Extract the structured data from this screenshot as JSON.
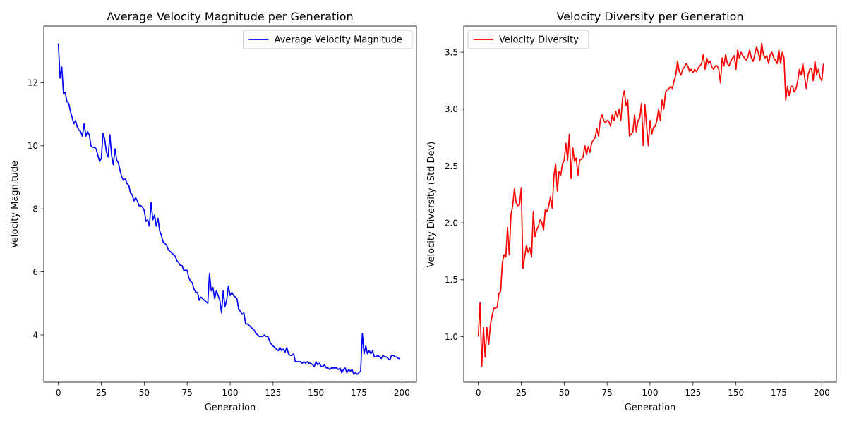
{
  "chart_data": [
    {
      "type": "line",
      "title": "Average Velocity Magnitude per Generation",
      "xlabel": "Generation",
      "ylabel": "Velocity Magnitude",
      "xlim": [
        -8.5,
        208.5
      ],
      "ylim": [
        2.5,
        13.8
      ],
      "xticks": [
        0,
        25,
        50,
        75,
        100,
        125,
        150,
        175,
        200
      ],
      "yticks": [
        4,
        6,
        8,
        10,
        12
      ],
      "legend": "upper right",
      "series": [
        {
          "name": "Average Velocity Magnitude",
          "color": "#0000ff",
          "x_start": 0,
          "values": [
            13.25,
            12.15,
            12.5,
            11.65,
            11.7,
            11.4,
            11.35,
            11.1,
            10.9,
            10.7,
            10.8,
            10.6,
            10.5,
            10.45,
            10.3,
            10.7,
            10.3,
            10.45,
            10.35,
            10.0,
            9.95,
            9.95,
            9.9,
            9.7,
            9.5,
            9.6,
            10.4,
            10.2,
            9.8,
            9.65,
            10.35,
            9.7,
            9.4,
            9.9,
            9.55,
            9.45,
            9.2,
            9.0,
            8.9,
            8.95,
            8.8,
            8.75,
            8.5,
            8.45,
            8.25,
            8.35,
            8.25,
            8.1,
            8.1,
            8.05,
            7.95,
            7.6,
            7.65,
            7.45,
            8.2,
            7.65,
            7.8,
            7.45,
            7.7,
            7.3,
            7.15,
            6.95,
            6.9,
            6.85,
            6.7,
            6.65,
            6.6,
            6.55,
            6.5,
            6.35,
            6.3,
            6.2,
            6.2,
            6.05,
            6.05,
            6.05,
            5.8,
            5.7,
            5.65,
            5.45,
            5.35,
            5.35,
            5.1,
            5.2,
            5.15,
            5.1,
            5.05,
            5.0,
            5.95,
            5.4,
            5.5,
            5.15,
            5.4,
            5.25,
            5.1,
            4.7,
            5.4,
            4.9,
            5.1,
            5.55,
            5.25,
            5.35,
            5.25,
            5.2,
            5.15,
            4.8,
            4.75,
            4.65,
            4.7,
            4.35,
            4.35,
            4.3,
            4.25,
            4.2,
            4.15,
            4.05,
            4.0,
            3.95,
            3.95,
            3.95,
            4.0,
            3.95,
            3.95,
            3.8,
            3.7,
            3.65,
            3.6,
            3.55,
            3.5,
            3.6,
            3.5,
            3.55,
            3.45,
            3.6,
            3.4,
            3.35,
            3.35,
            3.4,
            3.15,
            3.15,
            3.15,
            3.15,
            3.1,
            3.15,
            3.1,
            3.15,
            3.1,
            3.1,
            3.05,
            3.0,
            3.15,
            3.05,
            3.1,
            3.0,
            3.0,
            3.05,
            2.95,
            2.95,
            2.9,
            2.95,
            2.95,
            2.95,
            2.95,
            2.9,
            2.95,
            2.8,
            2.9,
            2.95,
            2.8,
            2.9,
            2.85,
            2.9,
            2.75,
            2.8,
            2.75,
            2.8,
            2.85,
            4.05,
            3.4,
            3.65,
            3.4,
            3.5,
            3.4,
            3.5,
            3.3,
            3.3,
            3.35,
            3.3,
            3.25,
            3.35,
            3.3,
            3.3,
            3.25,
            3.2,
            3.35,
            3.35,
            3.3,
            3.3,
            3.25,
            3.25
          ]
        }
      ]
    },
    {
      "type": "line",
      "title": "Velocity Diversity per Generation",
      "xlabel": "Generation",
      "ylabel": "Velocity Diversity (Std Dev)",
      "xlim": [
        -8.5,
        208.5
      ],
      "ylim": [
        0.6,
        3.73
      ],
      "xticks": [
        0,
        25,
        50,
        75,
        100,
        125,
        150,
        175,
        200
      ],
      "yticks": [
        1.0,
        1.5,
        2.0,
        2.5,
        3.0,
        3.5
      ],
      "ytick_labels": [
        "1.0",
        "1.5",
        "2.0",
        "2.5",
        "3.0",
        "3.5"
      ],
      "legend": "upper left",
      "series": [
        {
          "name": "Velocity Diversity",
          "color": "#ff0000",
          "x_start": 0,
          "values": [
            1.0,
            1.3,
            0.74,
            1.08,
            0.82,
            1.08,
            0.93,
            1.1,
            1.18,
            1.25,
            1.25,
            1.26,
            1.38,
            1.4,
            1.65,
            1.72,
            1.7,
            1.96,
            1.72,
            2.07,
            2.15,
            2.3,
            2.18,
            2.15,
            2.16,
            2.31,
            1.6,
            1.7,
            1.8,
            1.74,
            1.78,
            1.7,
            2.1,
            1.88,
            1.94,
            1.97,
            2.03,
            2.0,
            1.94,
            2.12,
            2.1,
            2.15,
            2.23,
            2.13,
            2.41,
            2.52,
            2.28,
            2.45,
            2.42,
            2.52,
            2.55,
            2.7,
            2.55,
            2.78,
            2.39,
            2.66,
            2.54,
            2.57,
            2.42,
            2.55,
            2.56,
            2.58,
            2.68,
            2.6,
            2.67,
            2.62,
            2.7,
            2.73,
            2.75,
            2.83,
            2.76,
            2.9,
            2.95,
            2.9,
            2.88,
            2.9,
            2.89,
            2.85,
            2.95,
            2.9,
            2.98,
            2.93,
            3.0,
            2.9,
            3.1,
            3.16,
            3.03,
            3.08,
            2.76,
            2.78,
            2.8,
            2.95,
            2.8,
            2.9,
            2.92,
            3.05,
            2.68,
            3.04,
            2.85,
            2.68,
            2.9,
            2.78,
            2.84,
            2.85,
            2.9,
            3.0,
            2.9,
            3.08,
            3.0,
            3.15,
            3.17,
            3.18,
            3.2,
            3.18,
            3.25,
            3.3,
            3.42,
            3.33,
            3.3,
            3.35,
            3.37,
            3.4,
            3.38,
            3.33,
            3.35,
            3.32,
            3.35,
            3.33,
            3.36,
            3.38,
            3.4,
            3.48,
            3.35,
            3.45,
            3.4,
            3.42,
            3.37,
            3.35,
            3.38,
            3.38,
            3.35,
            3.23,
            3.45,
            3.38,
            3.48,
            3.4,
            3.38,
            3.42,
            3.45,
            3.47,
            3.35,
            3.52,
            3.45,
            3.5,
            3.47,
            3.45,
            3.43,
            3.46,
            3.52,
            3.45,
            3.42,
            3.48,
            3.55,
            3.5,
            3.43,
            3.58,
            3.48,
            3.45,
            3.47,
            3.4,
            3.48,
            3.5,
            3.45,
            3.43,
            3.4,
            3.52,
            3.4,
            3.5,
            3.45,
            3.08,
            3.2,
            3.12,
            3.2,
            3.2,
            3.15,
            3.18,
            3.25,
            3.35,
            3.3,
            3.4,
            3.28,
            3.18,
            3.3,
            3.35,
            3.36,
            3.25,
            3.42,
            3.3,
            3.35,
            3.28,
            3.25,
            3.4
          ]
        }
      ]
    }
  ]
}
